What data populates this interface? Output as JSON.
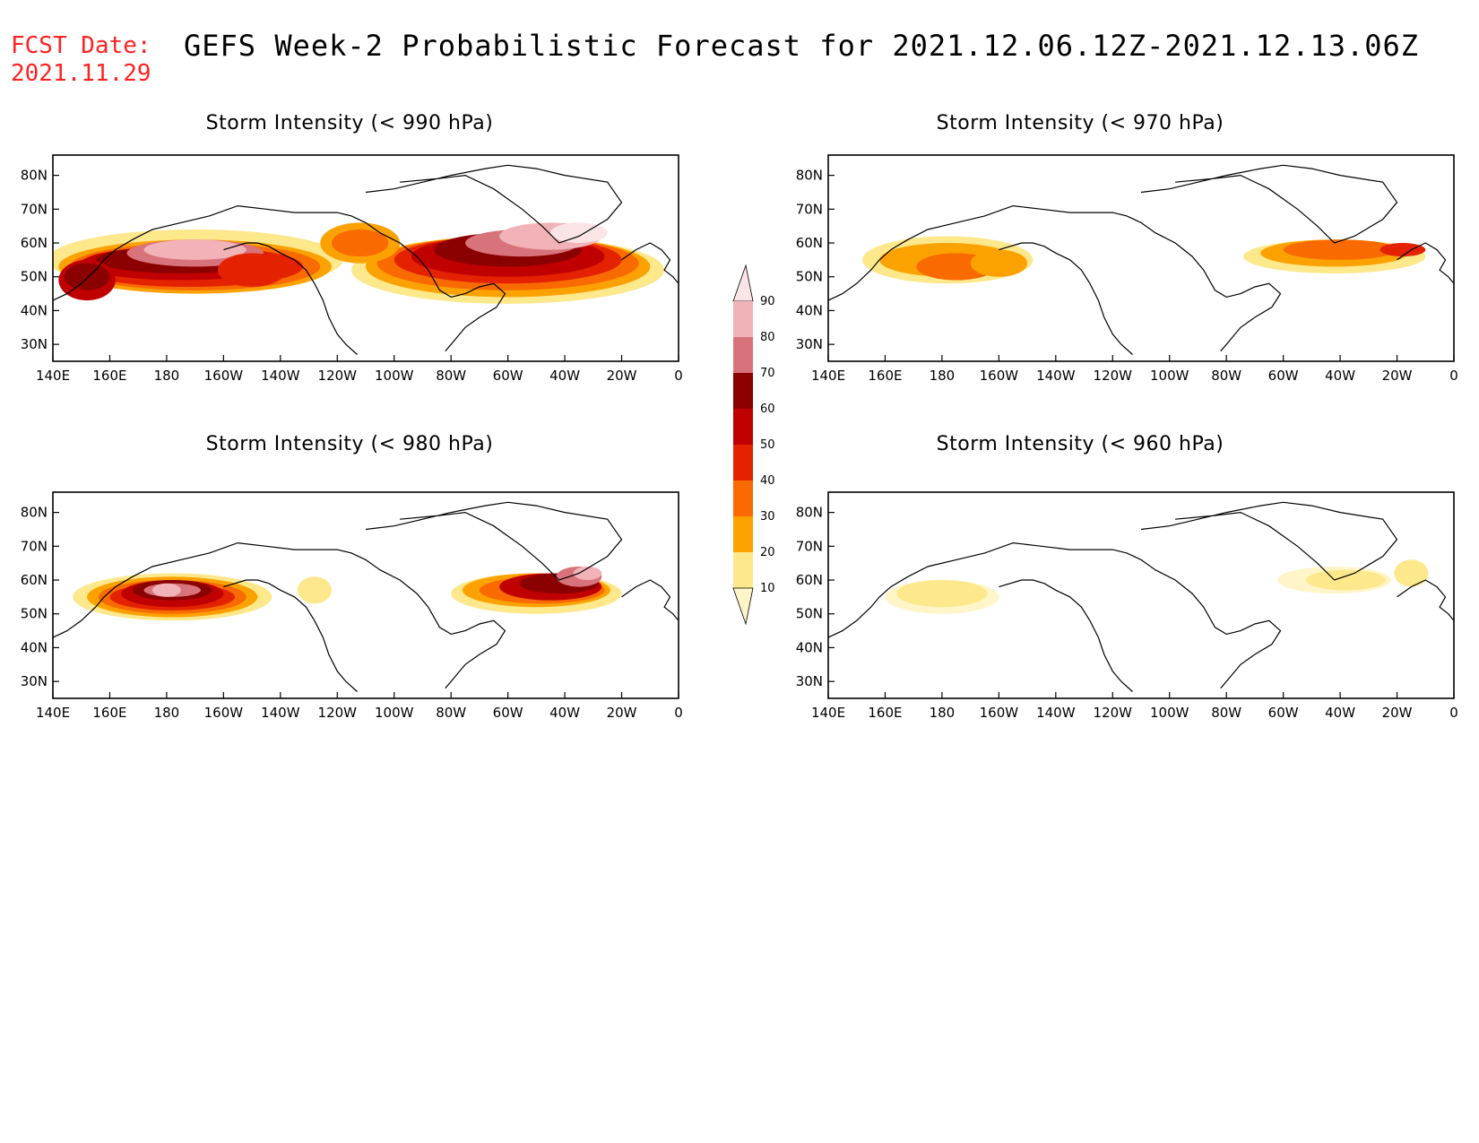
{
  "header": {
    "fcst_label": "FCST Date:",
    "fcst_date": "2021.11.29",
    "title": "GEFS Week-2 Probabilistic Forecast for 2021.12.06.12Z-2021.12.13.06Z"
  },
  "x_ticks": [
    "140E",
    "160E",
    "180",
    "160W",
    "140W",
    "120W",
    "100W",
    "80W",
    "60W",
    "40W",
    "20W",
    "0"
  ],
  "y_ticks": [
    "30N",
    "40N",
    "50N",
    "60N",
    "70N",
    "80N"
  ],
  "colorbar": {
    "levels": [
      "10",
      "20",
      "30",
      "40",
      "50",
      "60",
      "70",
      "80",
      "90"
    ],
    "colors": [
      "#fff5c8",
      "#fde88c",
      "#fca200",
      "#f96a00",
      "#e42200",
      "#c00000",
      "#8b0000",
      "#d9737b",
      "#f2b3b8",
      "#fbe4e6"
    ]
  },
  "panels": [
    {
      "title": "Storm Intensity (< 990 hPa)"
    },
    {
      "title": "Storm Intensity (< 970 hPa)"
    },
    {
      "title": "Storm Intensity (< 980 hPa)"
    },
    {
      "title": "Storm Intensity (< 960 hPa)"
    }
  ]
}
